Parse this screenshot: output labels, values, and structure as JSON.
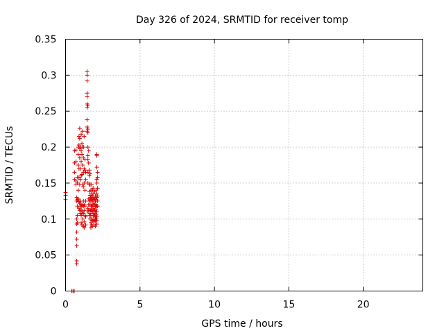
{
  "chart_data": {
    "type": "scatter",
    "title": "Day 326 of 2024, SRMTID for receiver tomp",
    "xlabel": "GPS time / hours",
    "ylabel": "SRMTID / TECUs",
    "xlim": [
      0,
      24
    ],
    "ylim": [
      0,
      0.35
    ],
    "x_ticks": [
      0,
      5,
      10,
      15,
      20
    ],
    "y_ticks": [
      0,
      0.05,
      0.1,
      0.15,
      0.2,
      0.25,
      0.3,
      0.35
    ],
    "grid": true,
    "legend": "none",
    "series": [
      {
        "name": "SRMTID",
        "color": "#dd0000",
        "marker": "plus",
        "points": [
          [
            0.0,
            0.133
          ],
          [
            0.0,
            0.127
          ],
          [
            0.0,
            0.137
          ],
          [
            0.42,
            0.0
          ],
          [
            0.5,
            0.0
          ],
          [
            0.58,
            0.0
          ],
          [
            0.6,
            0.195
          ],
          [
            0.6,
            0.178
          ],
          [
            0.6,
            0.155
          ],
          [
            0.6,
            0.165
          ],
          [
            0.7,
            0.196
          ],
          [
            0.7,
            0.18
          ],
          [
            0.7,
            0.153
          ],
          [
            0.7,
            0.148
          ],
          [
            0.75,
            0.13
          ],
          [
            0.75,
            0.125
          ],
          [
            0.75,
            0.1
          ],
          [
            0.75,
            0.093
          ],
          [
            0.75,
            0.082
          ],
          [
            0.75,
            0.072
          ],
          [
            0.75,
            0.063
          ],
          [
            0.75,
            0.042
          ],
          [
            0.75,
            0.038
          ],
          [
            0.8,
            0.158
          ],
          [
            0.8,
            0.15
          ],
          [
            0.8,
            0.127
          ],
          [
            0.8,
            0.118
          ],
          [
            0.8,
            0.105
          ],
          [
            0.8,
            0.095
          ],
          [
            0.85,
            0.2
          ],
          [
            0.85,
            0.19
          ],
          [
            0.85,
            0.175
          ],
          [
            0.85,
            0.14
          ],
          [
            0.85,
            0.128
          ],
          [
            0.9,
            0.215
          ],
          [
            0.9,
            0.203
          ],
          [
            0.9,
            0.17
          ],
          [
            0.9,
            0.158
          ],
          [
            0.9,
            0.124
          ],
          [
            0.9,
            0.115
          ],
          [
            0.95,
            0.226
          ],
          [
            0.95,
            0.212
          ],
          [
            0.95,
            0.198
          ],
          [
            0.95,
            0.185
          ],
          [
            0.95,
            0.148
          ],
          [
            0.95,
            0.122
          ],
          [
            0.95,
            0.112
          ],
          [
            1.0,
            0.2
          ],
          [
            1.0,
            0.17
          ],
          [
            1.0,
            0.155
          ],
          [
            1.0,
            0.125
          ],
          [
            1.0,
            0.118
          ],
          [
            1.0,
            0.108
          ],
          [
            1.05,
            0.218
          ],
          [
            1.05,
            0.195
          ],
          [
            1.05,
            0.18
          ],
          [
            1.05,
            0.16
          ],
          [
            1.05,
            0.12
          ],
          [
            1.05,
            0.113
          ],
          [
            1.05,
            0.105
          ],
          [
            1.05,
            0.095
          ],
          [
            1.1,
            0.205
          ],
          [
            1.1,
            0.19
          ],
          [
            1.1,
            0.162
          ],
          [
            1.1,
            0.118
          ],
          [
            1.1,
            0.108
          ],
          [
            1.1,
            0.092
          ],
          [
            1.15,
            0.222
          ],
          [
            1.15,
            0.2
          ],
          [
            1.15,
            0.175
          ],
          [
            1.15,
            0.148
          ],
          [
            1.15,
            0.12
          ],
          [
            1.15,
            0.11
          ],
          [
            1.15,
            0.1
          ],
          [
            1.2,
            0.2
          ],
          [
            1.2,
            0.185
          ],
          [
            1.2,
            0.165
          ],
          [
            1.2,
            0.145
          ],
          [
            1.2,
            0.125
          ],
          [
            1.2,
            0.118
          ],
          [
            1.2,
            0.108
          ],
          [
            1.2,
            0.09
          ],
          [
            1.25,
            0.215
          ],
          [
            1.25,
            0.17
          ],
          [
            1.25,
            0.15
          ],
          [
            1.25,
            0.12
          ],
          [
            1.25,
            0.112
          ],
          [
            1.25,
            0.096
          ],
          [
            1.25,
            0.088
          ],
          [
            1.3,
            0.183
          ],
          [
            1.3,
            0.168
          ],
          [
            1.3,
            0.14
          ],
          [
            1.3,
            0.118
          ],
          [
            1.3,
            0.105
          ],
          [
            1.35,
            0.165
          ],
          [
            1.35,
            0.155
          ],
          [
            1.35,
            0.125
          ],
          [
            1.35,
            0.103
          ],
          [
            1.35,
            0.092
          ],
          [
            1.45,
            0.305
          ],
          [
            1.45,
            0.3
          ],
          [
            1.45,
            0.292
          ],
          [
            1.45,
            0.275
          ],
          [
            1.45,
            0.27
          ],
          [
            1.45,
            0.26
          ],
          [
            1.45,
            0.255
          ],
          [
            1.45,
            0.238
          ],
          [
            1.45,
            0.228
          ],
          [
            1.45,
            0.222
          ],
          [
            1.5,
            0.258
          ],
          [
            1.5,
            0.225
          ],
          [
            1.5,
            0.22
          ],
          [
            1.5,
            0.2
          ],
          [
            1.5,
            0.188
          ],
          [
            1.5,
            0.183
          ],
          [
            1.5,
            0.165
          ],
          [
            1.5,
            0.15
          ],
          [
            1.5,
            0.115
          ],
          [
            1.5,
            0.11
          ],
          [
            1.55,
            0.195
          ],
          [
            1.55,
            0.178
          ],
          [
            1.55,
            0.128
          ],
          [
            1.55,
            0.12
          ],
          [
            1.55,
            0.112
          ],
          [
            1.6,
            0.168
          ],
          [
            1.6,
            0.16
          ],
          [
            1.6,
            0.148
          ],
          [
            1.6,
            0.138
          ],
          [
            1.6,
            0.125
          ],
          [
            1.6,
            0.12
          ],
          [
            1.6,
            0.105
          ],
          [
            1.65,
            0.163
          ],
          [
            1.65,
            0.148
          ],
          [
            1.65,
            0.133
          ],
          [
            1.65,
            0.128
          ],
          [
            1.65,
            0.112
          ],
          [
            1.65,
            0.108
          ],
          [
            1.65,
            0.1
          ],
          [
            1.7,
            0.14
          ],
          [
            1.7,
            0.13
          ],
          [
            1.7,
            0.125
          ],
          [
            1.7,
            0.12
          ],
          [
            1.7,
            0.113
          ],
          [
            1.7,
            0.105
          ],
          [
            1.7,
            0.095
          ],
          [
            1.7,
            0.088
          ],
          [
            1.75,
            0.148
          ],
          [
            1.75,
            0.135
          ],
          [
            1.75,
            0.128
          ],
          [
            1.75,
            0.118
          ],
          [
            1.75,
            0.112
          ],
          [
            1.75,
            0.1
          ],
          [
            1.75,
            0.092
          ],
          [
            1.8,
            0.14
          ],
          [
            1.8,
            0.132
          ],
          [
            1.8,
            0.125
          ],
          [
            1.8,
            0.118
          ],
          [
            1.8,
            0.11
          ],
          [
            1.8,
            0.098
          ],
          [
            1.8,
            0.09
          ],
          [
            1.85,
            0.143
          ],
          [
            1.85,
            0.135
          ],
          [
            1.85,
            0.127
          ],
          [
            1.85,
            0.12
          ],
          [
            1.85,
            0.112
          ],
          [
            1.85,
            0.105
          ],
          [
            1.85,
            0.097
          ],
          [
            1.9,
            0.13
          ],
          [
            1.9,
            0.122
          ],
          [
            1.9,
            0.115
          ],
          [
            1.9,
            0.108
          ],
          [
            1.9,
            0.1
          ],
          [
            1.9,
            0.092
          ],
          [
            1.95,
            0.138
          ],
          [
            1.95,
            0.128
          ],
          [
            1.95,
            0.12
          ],
          [
            1.95,
            0.112
          ],
          [
            1.95,
            0.105
          ],
          [
            1.95,
            0.098
          ],
          [
            2.0,
            0.132
          ],
          [
            2.0,
            0.125
          ],
          [
            2.0,
            0.118
          ],
          [
            2.0,
            0.11
          ],
          [
            2.0,
            0.103
          ],
          [
            2.0,
            0.097
          ],
          [
            2.0,
            0.09
          ],
          [
            2.05,
            0.14
          ],
          [
            2.05,
            0.127
          ],
          [
            2.05,
            0.12
          ],
          [
            2.05,
            0.113
          ],
          [
            2.05,
            0.106
          ],
          [
            2.05,
            0.1
          ],
          [
            2.1,
            0.19
          ],
          [
            2.1,
            0.188
          ],
          [
            2.1,
            0.172
          ],
          [
            2.1,
            0.155
          ],
          [
            2.1,
            0.15
          ],
          [
            2.1,
            0.135
          ],
          [
            2.1,
            0.13
          ],
          [
            2.1,
            0.118
          ],
          [
            2.1,
            0.11
          ],
          [
            2.1,
            0.103
          ],
          [
            2.1,
            0.098
          ],
          [
            2.1,
            0.093
          ],
          [
            2.15,
            0.165
          ],
          [
            2.15,
            0.158
          ],
          [
            2.15,
            0.143
          ],
          [
            2.15,
            0.132
          ],
          [
            2.15,
            0.125
          ],
          [
            2.15,
            0.118
          ]
        ]
      }
    ]
  }
}
